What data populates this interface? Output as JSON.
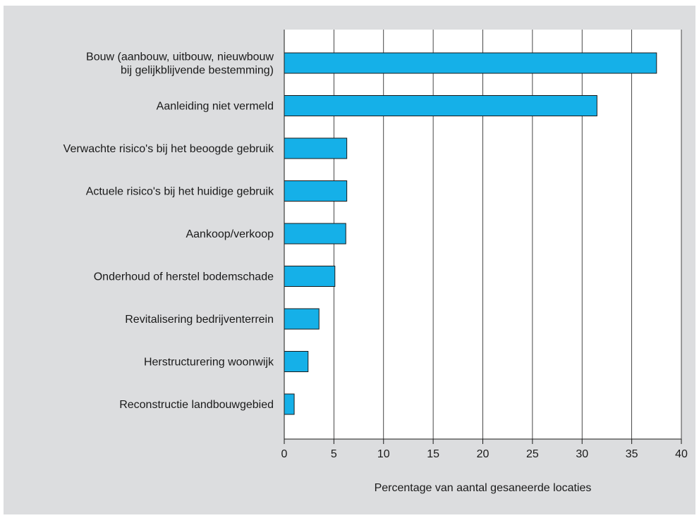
{
  "chart_data": {
    "type": "bar",
    "orientation": "horizontal",
    "categories": [
      [
        "Bouw (aanbouw, uitbouw, nieuwbouw",
        "bij gelijkblijvende bestemming)"
      ],
      [
        "Aanleiding niet vermeld"
      ],
      [
        "Verwachte risico's bij het beoogde gebruik"
      ],
      [
        "Actuele risico's bij het huidige gebruik"
      ],
      [
        "Aankoop/verkoop"
      ],
      [
        "Onderhoud of herstel bodemschade"
      ],
      [
        "Revitalisering bedrijventerrein"
      ],
      [
        "Herstructurering woonwijk"
      ],
      [
        "Reconstructie landbouwgebied"
      ]
    ],
    "values": [
      37.5,
      31.5,
      6.3,
      6.3,
      6.2,
      5.1,
      3.5,
      2.4,
      1.0
    ],
    "xlabel": "Percentage van aantal gesaneerde locaties",
    "ylabel": "",
    "xlim": [
      0,
      40
    ],
    "xticks": [
      "0",
      "5",
      "10",
      "15",
      "20",
      "25",
      "30",
      "35",
      "40"
    ],
    "grid": "vertical",
    "colors": {
      "bar_fill": "#15b0e8",
      "bar_stroke": "#1a1a1a",
      "panel_bg": "#dcdddf",
      "plot_bg": "#ffffff",
      "grid": "#1a1a1a"
    }
  }
}
